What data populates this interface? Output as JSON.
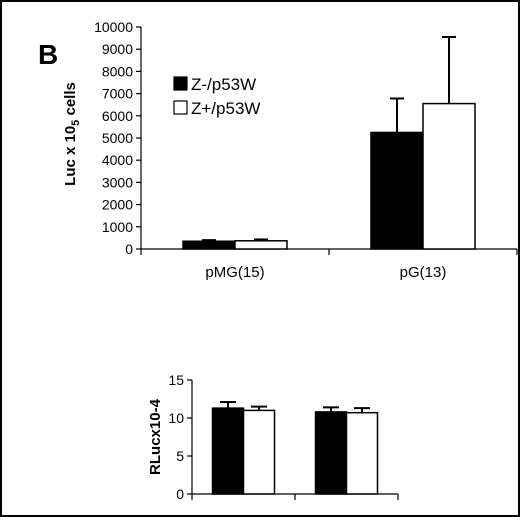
{
  "panel_label": "B",
  "chart_data": [
    {
      "type": "bar",
      "ylabel": "Luc x 10",
      "ylabel_sub": "5",
      "ylabel_suffix": " cells",
      "ylim": [
        0,
        10000
      ],
      "yticks": [
        "0",
        "1000",
        "2000",
        "3000",
        "4000",
        "5000",
        "6000",
        "7000",
        "8000",
        "9000",
        "10000"
      ],
      "categories": [
        "pMG(15)",
        "pG(13)"
      ],
      "series": [
        {
          "name": "Z-/p53W",
          "color": "#000000",
          "values": [
            350,
            5250
          ],
          "errors": [
            50,
            1530
          ]
        },
        {
          "name": "Z+/p53W",
          "color": "#ffffff",
          "values": [
            370,
            6550
          ],
          "errors": [
            60,
            3000
          ]
        }
      ],
      "legend_position": "upper-left"
    },
    {
      "type": "bar",
      "ylabel": "RLucx10-4",
      "ylim": [
        0,
        15
      ],
      "yticks": [
        "0",
        "5",
        "10",
        "15"
      ],
      "categories": [
        "",
        ""
      ],
      "series": [
        {
          "color": "#000000",
          "values": [
            11.3,
            10.8
          ],
          "errors": [
            0.8,
            0.6
          ]
        },
        {
          "color": "#ffffff",
          "values": [
            11.0,
            10.7
          ],
          "errors": [
            0.5,
            0.6
          ]
        }
      ]
    }
  ]
}
